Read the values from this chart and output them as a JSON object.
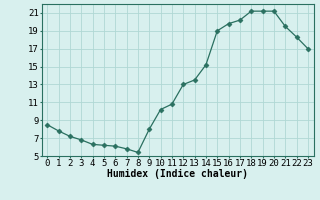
{
  "x": [
    0,
    1,
    2,
    3,
    4,
    5,
    6,
    7,
    8,
    9,
    10,
    11,
    12,
    13,
    14,
    15,
    16,
    17,
    18,
    19,
    20,
    21,
    22,
    23
  ],
  "y": [
    8.5,
    7.8,
    7.2,
    6.8,
    6.3,
    6.2,
    6.1,
    5.8,
    5.4,
    8.0,
    10.2,
    10.8,
    13.0,
    13.5,
    15.2,
    19.0,
    19.8,
    20.2,
    21.2,
    21.2,
    21.2,
    19.5,
    18.3,
    17.0
  ],
  "xlabel": "Humidex (Indice chaleur)",
  "xlim": [
    -0.5,
    23.5
  ],
  "ylim": [
    5,
    22
  ],
  "yticks": [
    5,
    7,
    9,
    11,
    13,
    15,
    17,
    19,
    21
  ],
  "xticks": [
    0,
    1,
    2,
    3,
    4,
    5,
    6,
    7,
    8,
    9,
    10,
    11,
    12,
    13,
    14,
    15,
    16,
    17,
    18,
    19,
    20,
    21,
    22,
    23
  ],
  "xtick_labels": [
    "0",
    "1",
    "2",
    "3",
    "4",
    "5",
    "6",
    "7",
    "8",
    "9",
    "10",
    "11",
    "12",
    "13",
    "14",
    "15",
    "16",
    "17",
    "18",
    "19",
    "20",
    "21",
    "22",
    "23"
  ],
  "line_color": "#2a7060",
  "marker": "D",
  "marker_size": 2.5,
  "bg_color": "#d8f0ee",
  "grid_color": "#b0d8d4",
  "axis_label_fontsize": 7,
  "tick_fontsize": 6.5
}
